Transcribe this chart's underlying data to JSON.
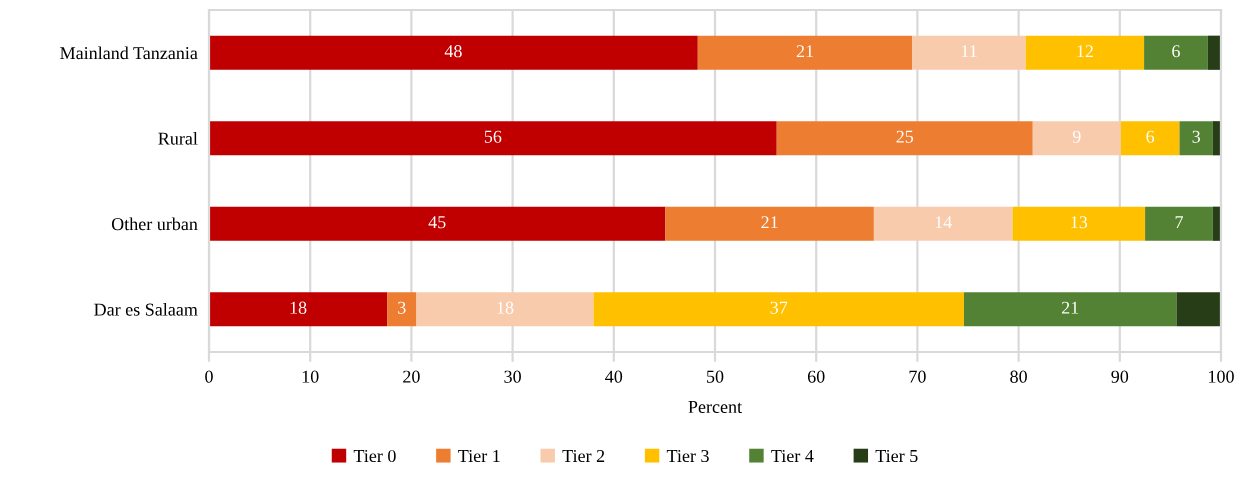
{
  "chart_data": {
    "type": "bar",
    "orientation": "horizontal",
    "stacked": true,
    "categories": [
      "Mainland Tanzania",
      "Rural",
      "Other urban",
      "Dar es Salaam"
    ],
    "series": [
      {
        "name": "Tier 0",
        "color": "#c00000",
        "values": [
          48.3,
          56.1,
          45.1,
          17.6
        ],
        "value_labels": [
          "48",
          "56",
          "45",
          "18"
        ]
      },
      {
        "name": "Tier 1",
        "color": "#ed7d31",
        "values": [
          21.2,
          25.3,
          20.6,
          2.9
        ],
        "value_labels": [
          "21",
          "25",
          "21",
          "3"
        ]
      },
      {
        "name": "Tier 2",
        "color": "#f8cbad",
        "values": [
          11.2,
          8.7,
          13.7,
          17.5
        ],
        "value_labels": [
          "11",
          "9",
          "14",
          "18"
        ]
      },
      {
        "name": "Tier 3",
        "color": "#ffc000",
        "values": [
          11.7,
          5.8,
          13.1,
          36.6
        ],
        "value_labels": [
          "12",
          "6",
          "13",
          "37"
        ]
      },
      {
        "name": "Tier 4",
        "color": "#548235",
        "values": [
          6.3,
          3.3,
          6.7,
          21.0
        ],
        "value_labels": [
          "6",
          "3",
          "7",
          "21"
        ]
      },
      {
        "name": "Tier 5",
        "color": "#263d17",
        "values": [
          1.3,
          0.8,
          0.8,
          4.4
        ],
        "value_labels": [
          null,
          null,
          null,
          null
        ]
      }
    ],
    "xlabel": "Percent",
    "xlim": [
      0,
      100
    ],
    "xticks": [
      0,
      10,
      20,
      30,
      40,
      50,
      60,
      70,
      80,
      90,
      100
    ],
    "grid": "x",
    "legend": "bottom"
  }
}
